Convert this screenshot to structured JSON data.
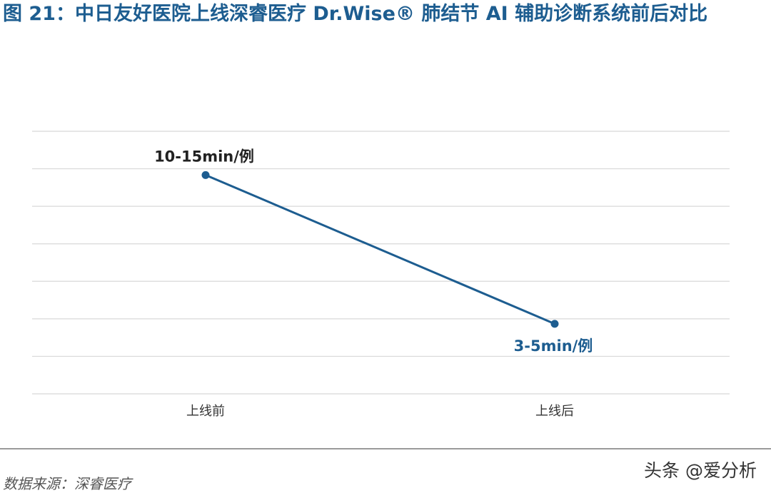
{
  "figure": {
    "label": "图 21：",
    "title": "中日友好医院上线深睿医疗 Dr.Wise® 肺结节 AI 辅助诊断系统前后对比"
  },
  "chart_data": {
    "type": "line",
    "categories": [
      "上线前",
      "上线后"
    ],
    "series": [
      {
        "values": [
          0.625,
          0.2
        ]
      }
    ],
    "data_labels": [
      "10-15min/例",
      "3-5min/例"
    ],
    "ylim": [
      0,
      0.75
    ],
    "grid": true,
    "colors": {
      "series": "#1d5d90",
      "grid": "#d8d8d8",
      "first_label": "#222222",
      "second_label": "#1d5d90"
    }
  },
  "source": "数据来源：深睿医疗",
  "watermark": "头条 @爱分析"
}
